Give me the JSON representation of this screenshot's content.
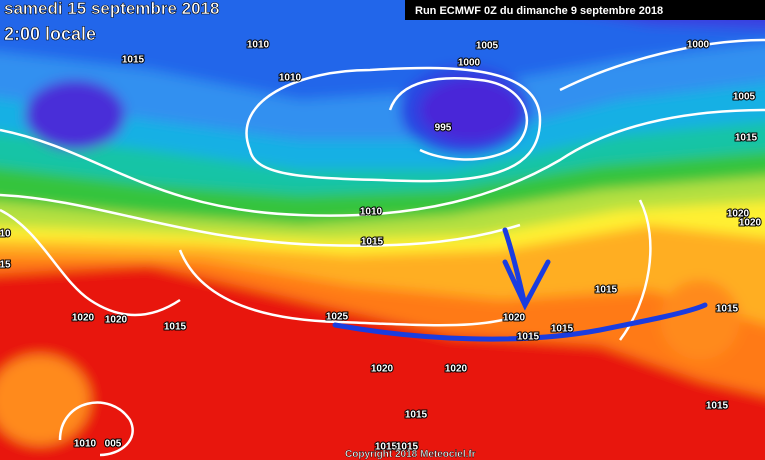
{
  "header": {
    "date": "samedi 15 septembre 2018",
    "time": "2:00 locale",
    "run": "Run ECMWF 0Z du dimanche 9 septembre 2018"
  },
  "footer": {
    "copyright": "Copyright 2018 Meteociel.fr"
  },
  "isobar_labels": [
    "1010",
    "1015",
    "1010",
    "1005",
    "1000",
    "1000",
    "1005",
    "995",
    "1015",
    "1010",
    "1015",
    "1020",
    "1020",
    "10",
    "15",
    "1020",
    "1020",
    "1015",
    "1025",
    "1020",
    "1015",
    "1015",
    "1015",
    "1015",
    "1020",
    "1020",
    "1015",
    "1015",
    "1010",
    "005",
    "1015",
    "1015"
  ]
}
